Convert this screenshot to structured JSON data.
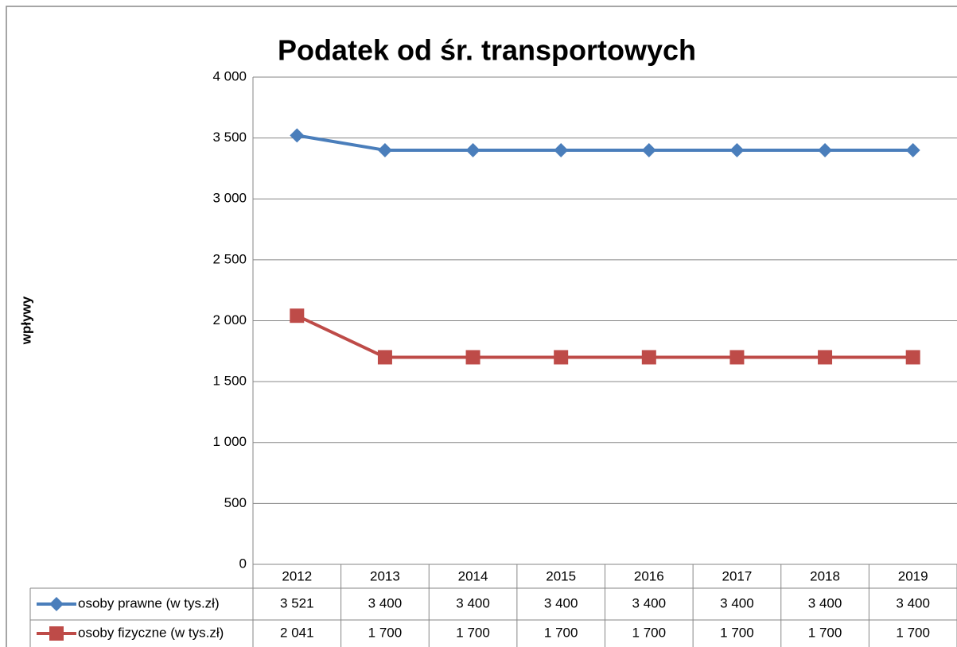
{
  "chart_data": {
    "type": "line",
    "title": "Podatek od śr. transportowych",
    "y_label": "wpływy",
    "categories": [
      "2012",
      "2013",
      "2014",
      "2015",
      "2016",
      "2017",
      "2018",
      "2019"
    ],
    "series": [
      {
        "name": "osoby prawne (w tys.zł)",
        "color": "#4a7ebb",
        "marker": "diamond",
        "values": [
          3521,
          3400,
          3400,
          3400,
          3400,
          3400,
          3400,
          3400
        ],
        "value_labels": [
          "3 521",
          "3 400",
          "3 400",
          "3 400",
          "3 400",
          "3 400",
          "3 400",
          "3 400"
        ]
      },
      {
        "name": "osoby fizyczne (w tys.zł)",
        "color": "#be4b48",
        "marker": "square",
        "values": [
          2041,
          1700,
          1700,
          1700,
          1700,
          1700,
          1700,
          1700
        ],
        "value_labels": [
          "2 041",
          "1 700",
          "1 700",
          "1 700",
          "1 700",
          "1 700",
          "1 700",
          "1 700"
        ]
      }
    ],
    "ylim": [
      0,
      4000
    ],
    "yticks": [
      0,
      500,
      {
        "value": 1000,
        "label": "1 000"
      },
      {
        "value": 1500,
        "label": "1 500"
      },
      {
        "value": 2000,
        "label": "2 000"
      },
      {
        "value": 2500,
        "label": "2 500"
      },
      {
        "value": 3000,
        "label": "3 000"
      },
      {
        "value": 3500,
        "label": "3 500"
      },
      {
        "value": 4000,
        "label": "4 000"
      }
    ],
    "grid": true,
    "data_table": true
  }
}
